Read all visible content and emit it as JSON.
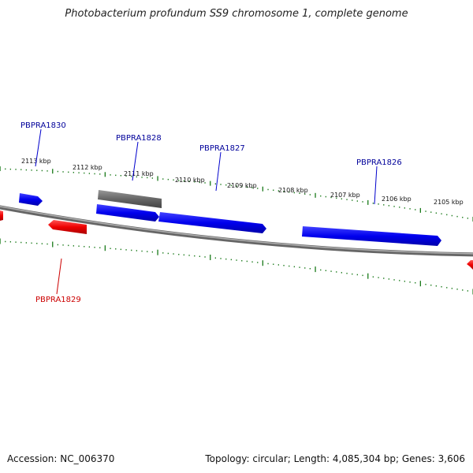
{
  "title": "Photobacterium profundum SS9 chromosome 1, complete genome",
  "footer": {
    "accession": "Accession: NC_006370",
    "topology": "Topology: circular; Length: 4,085,304 bp; Genes: 3,606"
  },
  "colors": {
    "forward_gene": "#0000ee",
    "reverse_gene": "#ee0000",
    "other_feature": "#666666",
    "backbone": "#888888",
    "ticks": "#1a7a1a",
    "forward_label": "#00009a",
    "reverse_label": "#cc0000"
  },
  "kbp_labels": [
    "2113 kbp",
    "2112 kbp",
    "2111 kbp",
    "2110 kbp",
    "2109 kbp",
    "2108 kbp",
    "2107 kbp",
    "2106 kbp",
    "2105 kbp"
  ],
  "gene_labels": [
    {
      "text": "PBPRA1830",
      "strand": "forward"
    },
    {
      "text": "PBPRA1828",
      "strand": "forward"
    },
    {
      "text": "PBPRA1827",
      "strand": "forward"
    },
    {
      "text": "PBPRA1826",
      "strand": "forward"
    },
    {
      "text": "PBPRA1829",
      "strand": "reverse"
    }
  ]
}
